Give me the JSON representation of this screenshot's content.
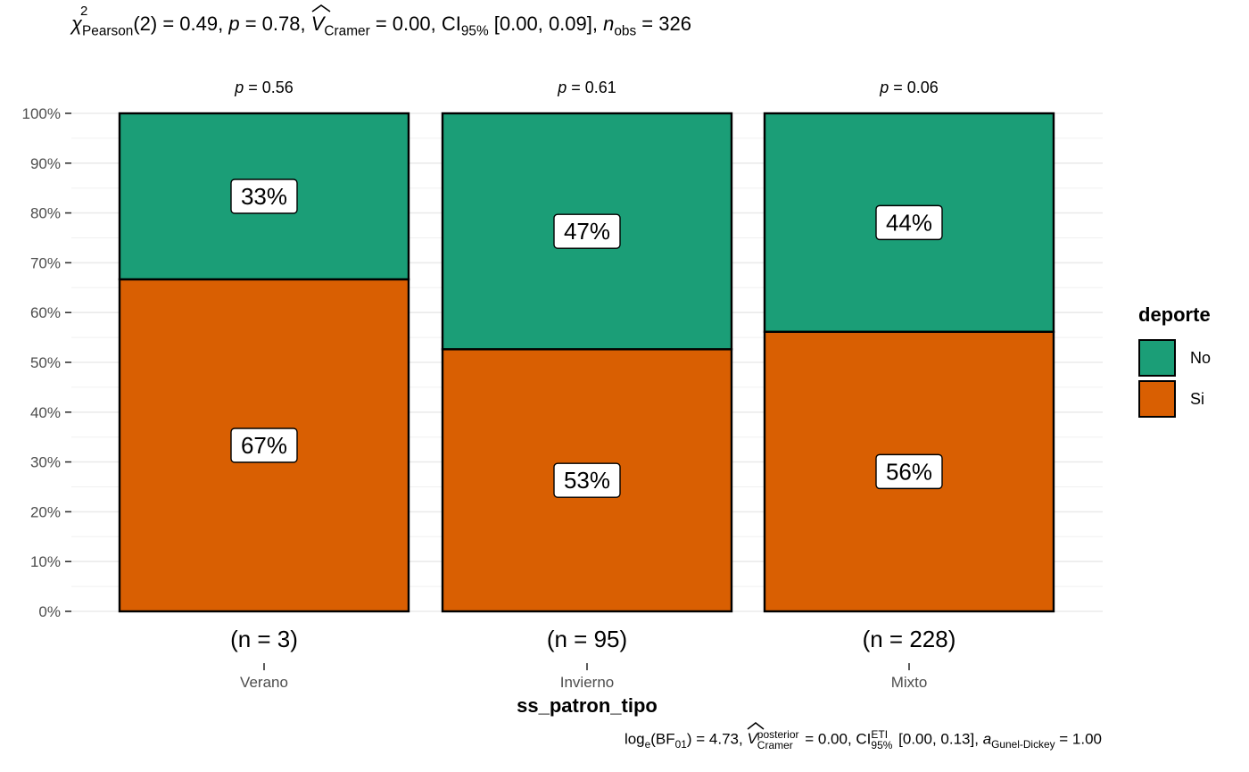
{
  "subtitle": {
    "chi_symbol": "χ",
    "chi_sup": "2",
    "chi_sub": "Pearson",
    "df_text": "(2) = 0.49, ",
    "p_symbol": "p",
    "p_text": " = 0.78, ",
    "v_symbol": "V",
    "v_sub": "Cramer",
    "v_text": " = 0.00, CI",
    "ci_sub": "95%",
    "ci_text": " [0.00, 0.09], ",
    "n_symbol": "n",
    "n_sub": "obs",
    "n_text": " = 326"
  },
  "caption": {
    "log_text": "log",
    "log_sub": "e",
    "bf_text": "(BF",
    "bf_sub": "01",
    "bf_close": ") = 4.73, ",
    "v_symbol": "V",
    "v_sup": "posterior",
    "v_sub": "Cramer",
    "v_text": " = 0.00, CI",
    "ci_sup": "ETI",
    "ci_sub": "95%",
    "ci_text": " [0.00, 0.13], ",
    "a_symbol": "a",
    "a_sub": "Gunel-Dickey",
    "a_text": " = 1.00"
  },
  "x_title": "ss_patron_tipo",
  "legend": {
    "title": "deporte",
    "items": [
      {
        "label": "No",
        "color": "#1b9e77"
      },
      {
        "label": "Si",
        "color": "#d95f02"
      }
    ]
  },
  "chart_data": {
    "type": "bar",
    "stacked": true,
    "percent": true,
    "categories": [
      "Verano",
      "Invierno",
      "Mixto"
    ],
    "counts_labels": [
      "(n = 3)",
      "(n = 95)",
      "(n = 228)"
    ],
    "p_labels": [
      {
        "symbol": "p",
        "text": " = 0.56"
      },
      {
        "symbol": "p",
        "text": " = 0.61"
      },
      {
        "symbol": "p",
        "text": " = 0.06"
      }
    ],
    "series": [
      {
        "name": "Si",
        "color": "#d95f02",
        "values": [
          66.67,
          52.63,
          56.14
        ],
        "labels": [
          "67%",
          "53%",
          "56%"
        ]
      },
      {
        "name": "No",
        "color": "#1b9e77",
        "values": [
          33.33,
          47.37,
          43.86
        ],
        "labels": [
          "33%",
          "47%",
          "44%"
        ]
      }
    ],
    "y_ticks": [
      "0%",
      "10%",
      "20%",
      "30%",
      "40%",
      "50%",
      "60%",
      "70%",
      "80%",
      "90%",
      "100%"
    ],
    "ylim": [
      0,
      100
    ],
    "grid": true
  }
}
